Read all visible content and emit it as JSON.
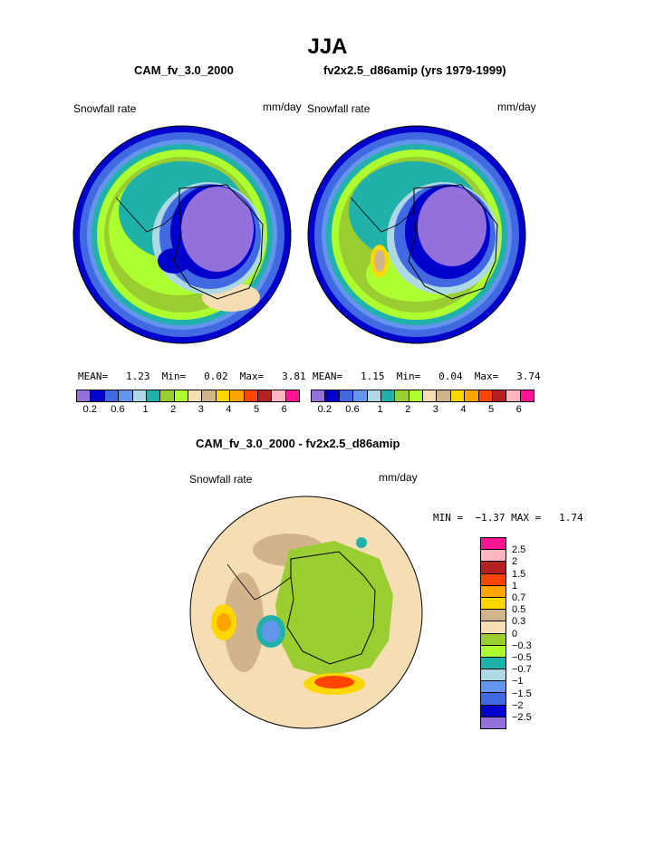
{
  "page_title": "JJA",
  "left_case": "CAM_fv_3.0_2000",
  "right_case": "fv2x2.5_d86amip (yrs 1979-1999)",
  "diff_title": "CAM_fv_3.0_2000 - fv2x2.5_d86amip",
  "variable": "Snowfall rate",
  "units": "mm/day",
  "left_stats": "MEAN=   1.23  Min=   0.02  Max=   3.81",
  "right_stats": "MEAN=   1.15  Min=   0.04  Max=   3.74",
  "diff_stats": "MIN =  −1.37 MAX =   1.74",
  "abs_colorbar": {
    "colors": [
      "#9370db",
      "#0000cd",
      "#4169e1",
      "#6495ed",
      "#add8e6",
      "#20b2aa",
      "#9acd32",
      "#adff2f",
      "#f5deb3",
      "#d2b48c",
      "#ffd700",
      "#ffa500",
      "#ff4500",
      "#b22222",
      "#ffb6c1",
      "#ff1493"
    ],
    "labels": [
      "0.2",
      "0.6",
      "1",
      "2",
      "3",
      "4",
      "5",
      "6"
    ]
  },
  "diff_colorbar": {
    "colors": [
      "#ff1493",
      "#ffb6c1",
      "#b22222",
      "#ff4500",
      "#ffa500",
      "#ffd700",
      "#d2b48c",
      "#f5deb3",
      "#9acd32",
      "#adff2f",
      "#20b2aa",
      "#add8e6",
      "#6495ed",
      "#4169e1",
      "#0000cd",
      "#9370db"
    ],
    "labels": [
      "2.5",
      "2",
      "1.5",
      "1",
      "0.7",
      "0.5",
      "0.3",
      "0",
      "−0.3",
      "−0.5",
      "−0.7",
      "−1",
      "−1.5",
      "−2",
      "−2.5"
    ]
  }
}
